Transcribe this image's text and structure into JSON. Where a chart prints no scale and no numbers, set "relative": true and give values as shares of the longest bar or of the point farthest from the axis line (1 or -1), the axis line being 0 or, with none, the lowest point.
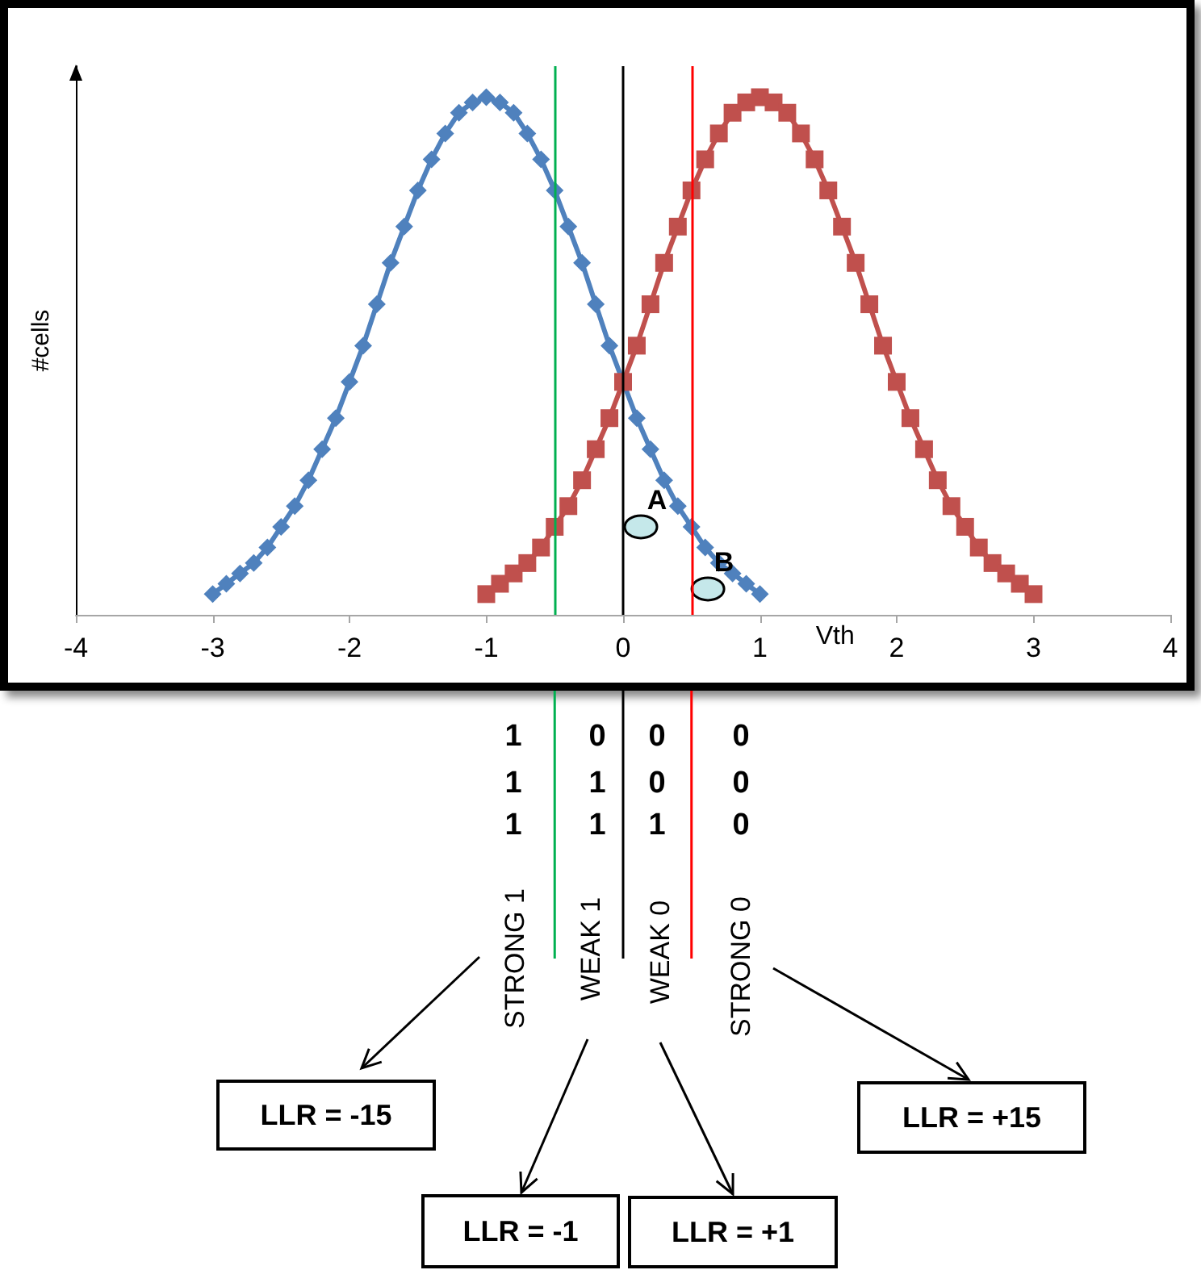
{
  "chart_data": {
    "type": "line",
    "relative": true,
    "xlabel": "Vth",
    "ylabel": "#cells",
    "xlim": [
      -4,
      4
    ],
    "xticks": [
      -4,
      -3,
      -2,
      -1,
      0,
      1,
      2,
      3,
      4
    ],
    "grid": false,
    "line_style": "solid",
    "series": [
      {
        "color": "#4f81bd",
        "marker": "diamond",
        "x": [
          -3,
          -2.9,
          -2.8,
          -2.7,
          -2.6,
          -2.5,
          -2.4,
          -2.3,
          -2.2,
          -2.1,
          -2,
          -1.9,
          -1.8,
          -1.7,
          -1.6,
          -1.5,
          -1.4,
          -1.3,
          -1.2,
          -1.1,
          -1,
          -0.9,
          -0.8,
          -0.7,
          -0.6,
          -0.5,
          -0.4,
          -0.3,
          -0.2,
          -0.1,
          0,
          0.1,
          0.2,
          0.3,
          0.4,
          0.5,
          0.6,
          0.7,
          0.8,
          0.9,
          1
        ],
        "values": [
          0.04,
          0.06,
          0.08,
          0.1,
          0.13,
          0.17,
          0.21,
          0.26,
          0.32,
          0.38,
          0.45,
          0.52,
          0.6,
          0.68,
          0.75,
          0.82,
          0.88,
          0.93,
          0.97,
          0.99,
          1,
          0.99,
          0.97,
          0.93,
          0.88,
          0.82,
          0.75,
          0.68,
          0.6,
          0.52,
          0.45,
          0.38,
          0.32,
          0.26,
          0.21,
          0.17,
          0.13,
          0.1,
          0.08,
          0.06,
          0.04
        ]
      },
      {
        "color": "#c0504d",
        "marker": "square",
        "x": [
          -1,
          -0.9,
          -0.8,
          -0.7,
          -0.6,
          -0.5,
          -0.4,
          -0.3,
          -0.2,
          -0.1,
          0,
          0.1,
          0.2,
          0.3,
          0.4,
          0.5,
          0.6,
          0.7,
          0.8,
          0.9,
          1,
          1.1,
          1.2,
          1.3,
          1.4,
          1.5,
          1.6,
          1.7,
          1.8,
          1.9,
          2,
          2.1,
          2.2,
          2.3,
          2.4,
          2.5,
          2.6,
          2.7,
          2.8,
          2.9,
          3
        ],
        "values": [
          0.04,
          0.06,
          0.08,
          0.1,
          0.13,
          0.17,
          0.21,
          0.26,
          0.32,
          0.38,
          0.45,
          0.52,
          0.6,
          0.68,
          0.75,
          0.82,
          0.88,
          0.93,
          0.97,
          0.99,
          1,
          0.99,
          0.97,
          0.93,
          0.88,
          0.82,
          0.75,
          0.68,
          0.6,
          0.52,
          0.45,
          0.38,
          0.32,
          0.26,
          0.21,
          0.17,
          0.13,
          0.1,
          0.08,
          0.06,
          0.04
        ]
      }
    ],
    "ref_lines": [
      {
        "axis": "x",
        "value": -0.5,
        "color": "#00b050"
      },
      {
        "axis": "x",
        "value": 0,
        "color": "#000000"
      },
      {
        "axis": "x",
        "value": 0.5,
        "color": "#ff0000"
      }
    ],
    "annotations": [
      {
        "text": "A",
        "x": 0.13,
        "y": 0.17
      },
      {
        "text": "B",
        "x": 0.62,
        "y": 0.05
      },
      "1 0 0 0",
      "1 1 0 0",
      "1 1 1 0",
      "STRONG 1",
      "WEAK 1",
      "WEAK 0",
      "STRONG 0",
      "LLR = -15",
      "LLR = -1",
      "LLR = +1",
      "LLR = +15"
    ]
  }
}
